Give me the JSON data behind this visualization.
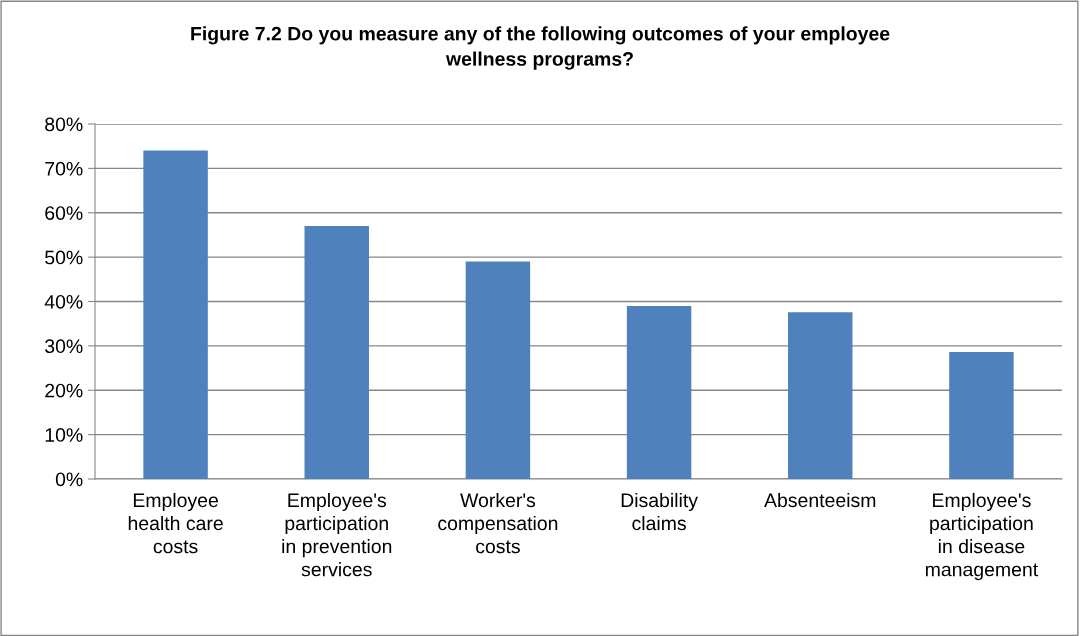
{
  "chart_data": {
    "type": "bar",
    "title": "Figure 7.2 Do you measure any of the following outcomes of your employee\nwellness programs?",
    "categories": [
      "Employee\nhealth care\ncosts",
      "Employee's\nparticipation\nin prevention\nservices",
      "Worker's\ncompensation\ncosts",
      "Disability\nclaims",
      "Absenteeism",
      "Employee's\nparticipation\nin disease\nmanagement"
    ],
    "values": [
      74,
      57,
      49,
      39,
      37.6,
      28.6
    ],
    "color": "#4f81bd",
    "ylim": [
      0,
      80
    ],
    "yticks": [
      {
        "value": 0,
        "label": "0%"
      },
      {
        "value": 10,
        "label": "10%"
      },
      {
        "value": 20,
        "label": "20%"
      },
      {
        "value": 30,
        "label": "30%"
      },
      {
        "value": 40,
        "label": "40%"
      },
      {
        "value": 50,
        "label": "50%"
      },
      {
        "value": 60,
        "label": "60%"
      },
      {
        "value": 70,
        "label": "70%"
      },
      {
        "value": 80,
        "label": "80%"
      }
    ],
    "grid": "y",
    "legend": false
  }
}
